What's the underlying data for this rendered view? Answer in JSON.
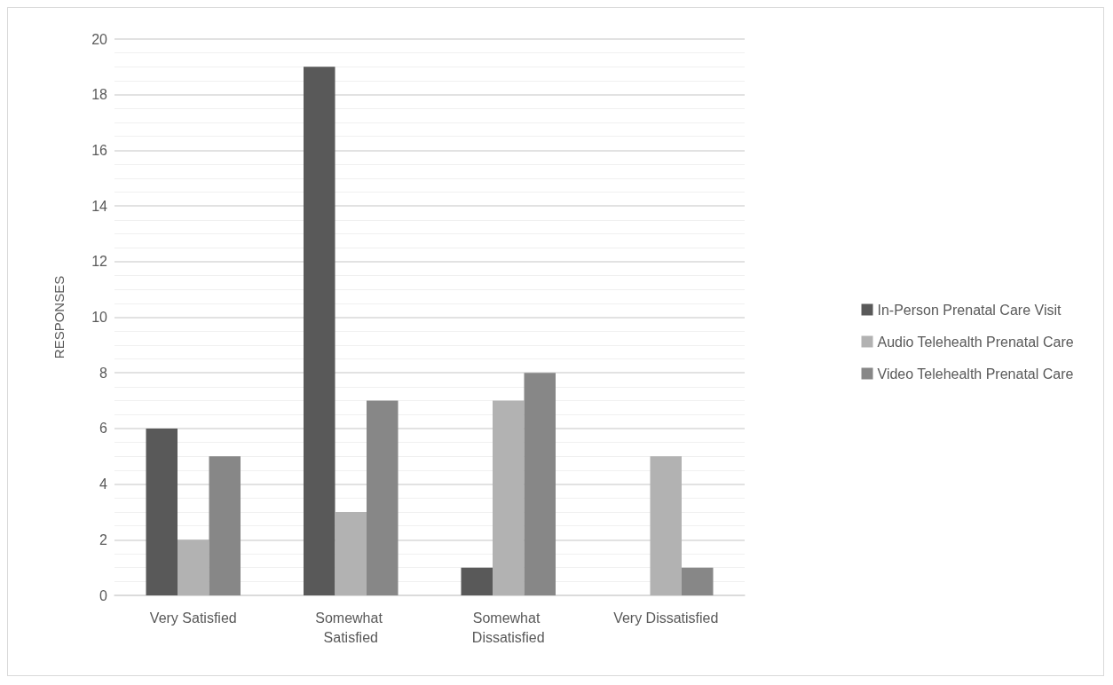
{
  "chart_data": {
    "type": "bar",
    "ylabel": "RESPONSES",
    "categories": [
      "Very Satisfied",
      "Somewhat Satisfied",
      "Somewhat Dissatisfied",
      "Very Dissatisfied"
    ],
    "series": [
      {
        "name": "In-Person Prenatal Care Visit",
        "color": "#595959",
        "values": [
          6,
          19,
          1,
          0
        ]
      },
      {
        "name": "Audio Telehealth Prenatal Care",
        "color": "#b2b2b2",
        "values": [
          2,
          3,
          7,
          5
        ]
      },
      {
        "name": "Video Telehealth Prenatal Care",
        "color": "#878787",
        "values": [
          5,
          7,
          8,
          1
        ]
      }
    ],
    "ylim": [
      0,
      20
    ],
    "yticks": [
      0,
      2,
      4,
      6,
      8,
      10,
      12,
      14,
      16,
      18,
      20
    ],
    "grid": "y",
    "legend": "right"
  }
}
